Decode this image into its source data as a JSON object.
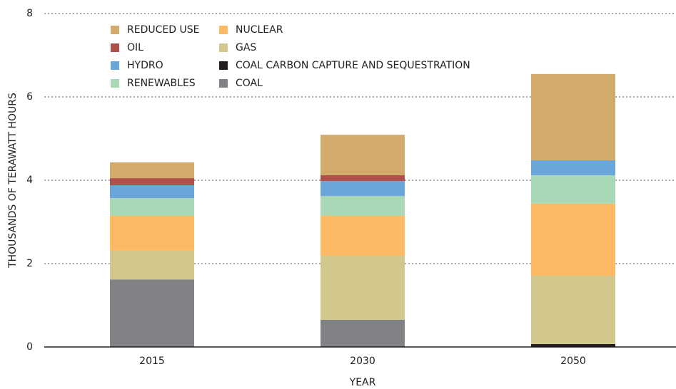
{
  "chart_data": {
    "type": "stacked_bar",
    "ylabel": "THOUSANDS OF TERAWATT HOURS",
    "xlabel": "YEAR",
    "categories": [
      "2015",
      "2030",
      "2050"
    ],
    "series": [
      {
        "name": "COAL",
        "color": "#808285",
        "values": [
          1.62,
          0.65,
          0
        ]
      },
      {
        "name": "COAL CARBON CAPTURE AND SEQUESTRATION",
        "color": "#231f20",
        "values": [
          0,
          0,
          0.07
        ]
      },
      {
        "name": "GAS",
        "color": "#d2c78c",
        "values": [
          0.69,
          1.54,
          1.64
        ]
      },
      {
        "name": "NUCLEAR",
        "color": "#fdb964",
        "values": [
          0.84,
          0.96,
          1.73
        ]
      },
      {
        "name": "RENEWABLES",
        "color": "#a8d8b5",
        "values": [
          0.42,
          0.47,
          0.68
        ]
      },
      {
        "name": "HYDRO",
        "color": "#6aa6d9",
        "values": [
          0.31,
          0.36,
          0.36
        ]
      },
      {
        "name": "OIL",
        "color": "#b0504b",
        "values": [
          0.17,
          0.14,
          0
        ]
      },
      {
        "name": "REDUCED USE",
        "color": "#d2aa6c",
        "values": [
          0.38,
          0.97,
          2.07
        ]
      }
    ],
    "ylim": [
      0,
      8
    ],
    "yticks": [
      0,
      2,
      4,
      6,
      8
    ],
    "grid": true
  }
}
